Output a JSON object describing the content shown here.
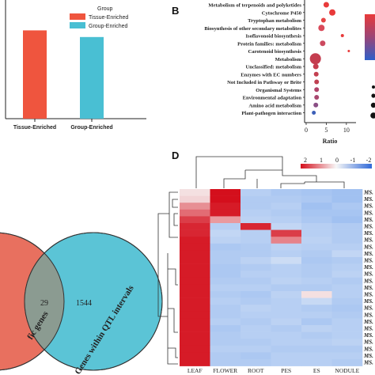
{
  "panel_a": {
    "legend_title": "Group",
    "legend_items": [
      {
        "label": "Tissue-Enriched",
        "color": "#ef553e"
      },
      {
        "label": "Group-Enriched",
        "color": "#49bfd3"
      }
    ],
    "chart_data": {
      "type": "bar",
      "categories": [
        "Tissue-Enriched",
        "Group-Enriched"
      ],
      "values": [
        0.93,
        0.86
      ],
      "colors": [
        "#ef553e",
        "#49bfd3"
      ],
      "ylim": [
        0,
        1.25
      ]
    }
  },
  "panel_b": {
    "letter": "B",
    "xlabel": "Ratio",
    "chart_data": {
      "type": "scatter",
      "categories": [
        "Metabolism of terpenoids and polyketides",
        "Cytochrome P450",
        "Tryptophan metabolism",
        "Biosynthesis of other secondary metabolites",
        "Isoflavonoid biosynthesis",
        "Protein families: metabolism",
        "Carotenoid biosynthesis",
        "Metabolism",
        "Unclassified: metabolism",
        "Enzymes with EC numbers",
        "Not Included in Pathway or Brite",
        "Organismal Systems",
        "Environmental adaptation",
        "Amino acid metabolism",
        "Plant-pathogen interaction"
      ],
      "x": [
        5.0,
        6.5,
        4.3,
        3.8,
        9.0,
        4.1,
        10.6,
        2.3,
        2.4,
        2.5,
        2.6,
        2.6,
        2.6,
        2.4,
        1.9
      ],
      "size": [
        3.5,
        4,
        3,
        4,
        2,
        3.5,
        1.5,
        7,
        3.5,
        3,
        3,
        3,
        3,
        3,
        2.5
      ],
      "color": [
        "#e83a3a",
        "#e83a3a",
        "#e64545",
        "#d94a5a",
        "#e83a3a",
        "#cc4a5f",
        "#e83a3a",
        "#c43d4f",
        "#c43d4f",
        "#c34050",
        "#c04152",
        "#b0446a",
        "#a9486f",
        "#8a4f85",
        "#3c5fb8"
      ],
      "xlim": [
        0,
        12
      ],
      "xticks": [
        "0",
        "5",
        "10"
      ]
    }
  },
  "panel_c": {
    "left_count": "",
    "overlap_count": "29",
    "right_count": "1544",
    "left_label": "fic genes",
    "right_label": "Genes within QTL intervals",
    "left_color": "#e8705f",
    "right_color": "#5bc4d6"
  },
  "panel_d": {
    "letter": "D",
    "color_scale": {
      "ticks": [
        "2",
        "1",
        "0",
        "-1",
        "-2"
      ]
    },
    "chart_data": {
      "type": "heatmap",
      "columns": [
        "LEAF",
        "FLOWER",
        "ROOT",
        "PES",
        "ES",
        "NODULE"
      ],
      "row_label": "MS.",
      "values": [
        [
          0.2,
          2.0,
          -1.2,
          -1.4,
          -1.5,
          -1.6
        ],
        [
          0.3,
          2.0,
          -1.3,
          -1.3,
          -1.4,
          -1.6
        ],
        [
          0.9,
          1.9,
          -1.3,
          -1.2,
          -1.6,
          -1.4
        ],
        [
          1.2,
          1.9,
          -1.2,
          -1.3,
          -1.5,
          -1.5
        ],
        [
          1.6,
          0.8,
          -1.1,
          -1.2,
          -1.4,
          -1.6
        ],
        [
          1.8,
          -1.2,
          1.8,
          -1.0,
          -1.2,
          -1.3
        ],
        [
          1.8,
          -1.0,
          -1.2,
          1.6,
          -1.2,
          -1.3
        ],
        [
          1.9,
          -1.1,
          -1.2,
          1.0,
          -1.1,
          -1.3
        ],
        [
          1.9,
          -1.4,
          -1.3,
          -1.1,
          -1.2,
          -1.2
        ],
        [
          1.9,
          -1.3,
          -1.3,
          -1.2,
          -1.3,
          -1.0
        ],
        [
          1.9,
          -1.3,
          -1.1,
          -0.8,
          -1.4,
          -1.3
        ],
        [
          1.9,
          -1.4,
          -1.3,
          -1.2,
          -1.3,
          -1.2
        ],
        [
          1.9,
          -1.4,
          -1.2,
          -1.2,
          -1.3,
          -1.1
        ],
        [
          1.9,
          -1.3,
          -1.3,
          -1.1,
          -1.2,
          -1.3
        ],
        [
          1.9,
          -1.2,
          -1.2,
          -1.3,
          -1.3,
          -1.2
        ],
        [
          1.9,
          -1.3,
          -1.4,
          -1.1,
          0.2,
          -1.2
        ],
        [
          1.9,
          -1.2,
          -1.3,
          -1.2,
          -0.9,
          -1.3
        ],
        [
          1.9,
          -1.3,
          -1.1,
          -1.2,
          -1.3,
          -1.4
        ],
        [
          1.9,
          -1.3,
          -1.2,
          -1.2,
          -1.2,
          -1.3
        ],
        [
          1.9,
          -1.2,
          -1.3,
          -1.1,
          -1.4,
          -1.2
        ],
        [
          1.9,
          -1.4,
          -1.2,
          -1.3,
          -1.1,
          -1.2
        ],
        [
          1.9,
          -1.3,
          -1.2,
          -1.2,
          -1.3,
          -1.2
        ],
        [
          1.9,
          -1.3,
          -1.3,
          -1.2,
          -1.2,
          -1.1
        ],
        [
          1.9,
          -1.2,
          -1.2,
          -1.3,
          -1.3,
          -1.3
        ],
        [
          1.9,
          -1.3,
          -1.4,
          -1.2,
          -1.2,
          -1.2
        ],
        [
          1.9,
          -1.3,
          -1.3,
          -1.2,
          -1.2,
          -1.3
        ]
      ]
    }
  }
}
